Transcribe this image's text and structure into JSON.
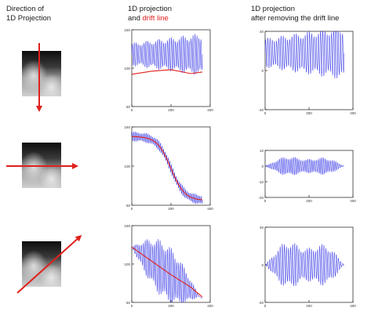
{
  "headers": {
    "col1_line1": "Direction of",
    "col1_line2": "1D Projection",
    "col2_line1": "1D projection",
    "col2_and": "and ",
    "col2_red": "drift line",
    "col3_line1": "1D projection",
    "col3_line2": "after removing the drift line"
  },
  "colors": {
    "projection": "#2e2ee6",
    "drift_line": "#e0201c",
    "arrow": "#e0201c"
  },
  "chart_data": [
    {
      "type": "line",
      "row": 1,
      "column": "1D projection and drift line",
      "xlim": [
        0,
        400
      ],
      "ylim": [
        50,
        150
      ],
      "x_ticks": [
        "0",
        "200",
        "400"
      ],
      "y_ticks": [
        "50",
        "100",
        "150"
      ],
      "series": [
        {
          "values": {
            "center": 118,
            "amp_start": 15,
            "amp_end": 28,
            "periods": 36
          }
        },
        {
          "values": [
            [
              0,
              92
            ],
            [
              100,
              96
            ],
            [
              200,
              98
            ],
            [
              300,
              93
            ],
            [
              360,
              95
            ]
          ]
        }
      ]
    },
    {
      "type": "line",
      "row": 1,
      "column": "1D projection after removing the drift line",
      "xlim": [
        0,
        400
      ],
      "ylim": [
        -40,
        40
      ],
      "x_ticks": [
        "0",
        "200",
        "400"
      ],
      "y_ticks": [
        "-40",
        "0",
        "40"
      ],
      "series": [
        {
          "values": {
            "center": 18,
            "amp_start": 15,
            "amp_end": 28,
            "periods": 36
          }
        }
      ]
    },
    {
      "type": "line",
      "row": 2,
      "column": "1D projection and drift line",
      "xlim": [
        0,
        400
      ],
      "ylim": [
        50,
        150
      ],
      "x_ticks": [
        "0",
        "200",
        "400"
      ],
      "y_ticks": [
        "50",
        "100",
        "150"
      ],
      "series": [
        {
          "values": {
            "shape": "sigmoid",
            "from": 138,
            "to": 56,
            "mid": 200,
            "amp": 6,
            "periods": 45
          }
        },
        {
          "values": {
            "shape": "sigmoid",
            "from": 138,
            "to": 56,
            "mid": 200
          }
        }
      ]
    },
    {
      "type": "line",
      "row": 2,
      "column": "1D projection after removing the drift line",
      "xlim": [
        0,
        400
      ],
      "ylim": [
        -20,
        10
      ],
      "x_ticks": [
        "0",
        "200",
        "400"
      ],
      "y_ticks": [
        "-20",
        "-10",
        "0",
        "10"
      ],
      "series": [
        {
          "values": {
            "center": 0,
            "amp_peak": 9,
            "periods": 45
          }
        }
      ]
    },
    {
      "type": "line",
      "row": 3,
      "column": "1D projection and drift line",
      "xlim": [
        0,
        400
      ],
      "ylim": [
        50,
        150
      ],
      "x_ticks": [
        "0",
        "200",
        "400"
      ],
      "y_ticks": [
        "50",
        "100",
        "150"
      ],
      "series": [
        {
          "values": {
            "shape": "lens",
            "from": 122,
            "to": 55,
            "amp_peak": 38,
            "periods": 38
          }
        },
        {
          "values": [
            [
              0,
              122
            ],
            [
              100,
              104
            ],
            [
              200,
              86
            ],
            [
              300,
              70
            ],
            [
              360,
              57
            ]
          ]
        }
      ]
    },
    {
      "type": "line",
      "row": 3,
      "column": "1D projection after removing the drift line",
      "xlim": [
        0,
        400
      ],
      "ylim": [
        -40,
        40
      ],
      "x_ticks": [
        "0",
        "200",
        "400"
      ],
      "y_ticks": [
        "-40",
        "0",
        "40"
      ],
      "series": [
        {
          "values": {
            "center": 0,
            "amp_peak": 36,
            "periods": 38
          }
        }
      ]
    }
  ]
}
